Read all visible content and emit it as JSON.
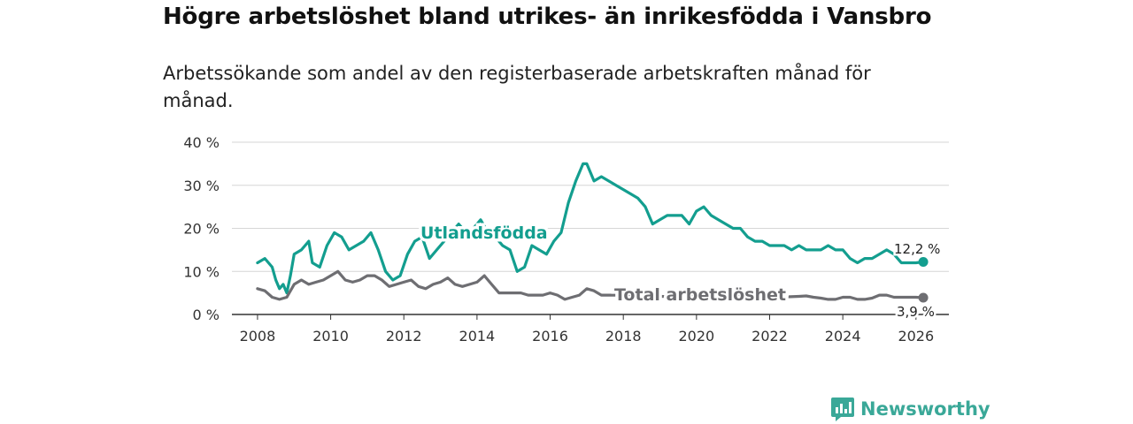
{
  "chart_data": {
    "type": "line",
    "title": "Högre arbetslöshet bland utrikes- än inrikesfödda i Vansbro",
    "subtitle": "Arbetssökande som andel av den registerbaserade arbetskraften månad för månad.",
    "xlabel": "",
    "ylabel": "",
    "xlim": [
      2007.3,
      2026.9
    ],
    "ylim": [
      0,
      40
    ],
    "x_ticks": [
      "2008",
      "2010",
      "2012",
      "2014",
      "2016",
      "2018",
      "2020",
      "2022",
      "2024",
      "2026"
    ],
    "y_ticks": [
      "0 %",
      "10 %",
      "20 %",
      "30 %",
      "40 %"
    ],
    "grid": true,
    "series": [
      {
        "name": "Utlandsfödda",
        "color": "#139e8f",
        "end_label": "12,2 %",
        "x": [
          2008.0,
          2008.2,
          2008.4,
          2008.5,
          2008.6,
          2008.7,
          2008.8,
          2008.9,
          2009.0,
          2009.2,
          2009.4,
          2009.5,
          2009.7,
          2009.9,
          2010.1,
          2010.3,
          2010.5,
          2010.7,
          2010.9,
          2011.1,
          2011.3,
          2011.5,
          2011.7,
          2011.9,
          2012.1,
          2012.3,
          2012.5,
          2012.7,
          2012.9,
          2013.1,
          2013.3,
          2013.5,
          2013.7,
          2013.9,
          2014.1,
          2014.3,
          2014.5,
          2014.7,
          2014.9,
          2015.1,
          2015.3,
          2015.5,
          2015.7,
          2015.9,
          2016.1,
          2016.3,
          2016.5,
          2016.7,
          2016.9,
          2017.0,
          2017.2,
          2017.4,
          2017.6,
          2017.8,
          2018.0,
          2018.2,
          2018.4,
          2018.6,
          2018.8,
          2019.0,
          2019.2,
          2019.4,
          2019.6,
          2019.8,
          2020.0,
          2020.2,
          2020.4,
          2020.6,
          2020.8,
          2021.0,
          2021.2,
          2021.4,
          2021.6,
          2021.8,
          2022.0,
          2022.2,
          2022.4,
          2022.6,
          2022.8,
          2023.0,
          2023.2,
          2023.4,
          2023.6,
          2023.8,
          2024.0,
          2024.2,
          2024.4,
          2024.6,
          2024.8,
          2025.0,
          2025.2,
          2025.4,
          2025.6,
          2025.8,
          2026.0,
          2026.2
        ],
        "y": [
          12,
          13,
          11,
          8,
          6,
          7,
          5,
          9,
          14,
          15,
          17,
          12,
          11,
          16,
          19,
          18,
          15,
          16,
          17,
          19,
          15,
          10,
          8,
          9,
          14,
          17,
          18,
          13,
          15,
          17,
          19,
          21,
          19,
          20,
          22,
          19,
          18,
          16,
          15,
          10,
          11,
          16,
          15,
          14,
          17,
          19,
          26,
          31,
          35,
          35,
          31,
          32,
          31,
          30,
          29,
          28,
          27,
          25,
          21,
          22,
          23,
          23,
          23,
          21,
          24,
          25,
          23,
          22,
          21,
          20,
          20,
          18,
          17,
          17,
          16,
          16,
          16,
          15,
          16,
          15,
          15,
          15,
          16,
          15,
          15,
          13,
          12,
          13,
          13,
          14,
          15,
          14,
          12,
          12,
          12,
          12.2
        ]
      },
      {
        "name": "Total arbetslöshet",
        "color": "#6e6e72",
        "end_label": "3,9 %",
        "x": [
          2008.0,
          2008.2,
          2008.4,
          2008.6,
          2008.8,
          2009.0,
          2009.2,
          2009.4,
          2009.6,
          2009.8,
          2010.0,
          2010.2,
          2010.4,
          2010.6,
          2010.8,
          2011.0,
          2011.2,
          2011.4,
          2011.6,
          2011.8,
          2012.0,
          2012.2,
          2012.4,
          2012.6,
          2012.8,
          2013.0,
          2013.2,
          2013.4,
          2013.6,
          2013.8,
          2014.0,
          2014.2,
          2014.4,
          2014.6,
          2014.8,
          2015.0,
          2015.2,
          2015.4,
          2015.6,
          2015.8,
          2016.0,
          2016.2,
          2016.4,
          2016.6,
          2016.8,
          2017.0,
          2017.2,
          2017.4,
          2017.6,
          2017.8,
          2018.0,
          2018.5,
          2019.0,
          2019.5,
          2020.0,
          2020.5,
          2021.0,
          2021.5,
          2022.0,
          2022.5,
          2022.8,
          2023.0,
          2023.2,
          2023.4,
          2023.6,
          2023.8,
          2024.0,
          2024.2,
          2024.4,
          2024.6,
          2024.8,
          2025.0,
          2025.2,
          2025.4,
          2025.6,
          2025.8,
          2026.0,
          2026.2
        ],
        "y": [
          6,
          5.5,
          4,
          3.5,
          4,
          7,
          8,
          7,
          7.5,
          8,
          9,
          10,
          8,
          7.5,
          8,
          9,
          9,
          8,
          6.5,
          7,
          7.5,
          8,
          6.5,
          6,
          7,
          7.5,
          8.5,
          7,
          6.5,
          7,
          7.5,
          9,
          7,
          5,
          5,
          5,
          5,
          4.5,
          4.5,
          4.5,
          5,
          4.5,
          3.5,
          4,
          4.5,
          6,
          5.5,
          4.5,
          4.5,
          4.5,
          4.5,
          4.3,
          4.2,
          4.1,
          4.0,
          4.0,
          4.0,
          4.1,
          4.1,
          4.1,
          4.2,
          4.3,
          4,
          3.8,
          3.5,
          3.5,
          4,
          4,
          3.5,
          3.5,
          3.8,
          4.5,
          4.5,
          4,
          4,
          4,
          4,
          3.9
        ]
      }
    ]
  },
  "branding": {
    "name": "Newsworthy",
    "color": "#3aa898"
  }
}
